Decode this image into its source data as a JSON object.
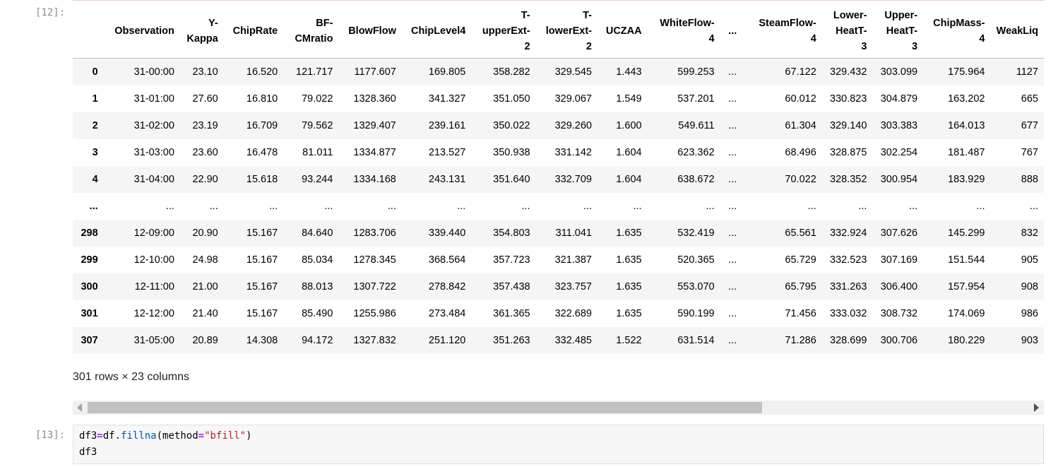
{
  "cells": {
    "out_prompt": "[12]:",
    "in_prompt": "[13]:"
  },
  "table": {
    "columns": [
      {
        "lines": [
          ""
        ]
      },
      {
        "lines": [
          "Observation"
        ]
      },
      {
        "lines": [
          "Y-",
          "Kappa"
        ]
      },
      {
        "lines": [
          "ChipRate"
        ]
      },
      {
        "lines": [
          "BF-",
          "CMratio"
        ]
      },
      {
        "lines": [
          "BlowFlow"
        ]
      },
      {
        "lines": [
          "ChipLevel4"
        ]
      },
      {
        "lines": [
          "T-",
          "upperExt-",
          "2"
        ]
      },
      {
        "lines": [
          "T-",
          "lowerExt-",
          "2"
        ]
      },
      {
        "lines": [
          "UCZAA"
        ]
      },
      {
        "lines": [
          "WhiteFlow-",
          "4"
        ]
      },
      {
        "lines": [
          "..."
        ]
      },
      {
        "lines": [
          "SteamFlow-",
          "4"
        ]
      },
      {
        "lines": [
          "Lower-",
          "HeatT-",
          "3"
        ]
      },
      {
        "lines": [
          "Upper-",
          "HeatT-",
          "3"
        ]
      },
      {
        "lines": [
          "ChipMass-",
          "4"
        ]
      },
      {
        "lines": [
          "WeakLiq"
        ]
      }
    ],
    "rows": [
      [
        "0",
        "31-00:00",
        "23.10",
        "16.520",
        "121.717",
        "1177.607",
        "169.805",
        "358.282",
        "329.545",
        "1.443",
        "599.253",
        "...",
        "67.122",
        "329.432",
        "303.099",
        "175.964",
        "1127"
      ],
      [
        "1",
        "31-01:00",
        "27.60",
        "16.810",
        "79.022",
        "1328.360",
        "341.327",
        "351.050",
        "329.067",
        "1.549",
        "537.201",
        "...",
        "60.012",
        "330.823",
        "304.879",
        "163.202",
        "665"
      ],
      [
        "2",
        "31-02:00",
        "23.19",
        "16.709",
        "79.562",
        "1329.407",
        "239.161",
        "350.022",
        "329.260",
        "1.600",
        "549.611",
        "...",
        "61.304",
        "329.140",
        "303.383",
        "164.013",
        "677"
      ],
      [
        "3",
        "31-03:00",
        "23.60",
        "16.478",
        "81.011",
        "1334.877",
        "213.527",
        "350.938",
        "331.142",
        "1.604",
        "623.362",
        "...",
        "68.496",
        "328.875",
        "302.254",
        "181.487",
        "767"
      ],
      [
        "4",
        "31-04:00",
        "22.90",
        "15.618",
        "93.244",
        "1334.168",
        "243.131",
        "351.640",
        "332.709",
        "1.604",
        "638.672",
        "...",
        "70.022",
        "328.352",
        "300.954",
        "183.929",
        "888"
      ],
      [
        "...",
        "...",
        "...",
        "...",
        "...",
        "...",
        "...",
        "...",
        "...",
        "...",
        "...",
        "...",
        "...",
        "...",
        "...",
        "...",
        "..."
      ],
      [
        "298",
        "12-09:00",
        "20.90",
        "15.167",
        "84.640",
        "1283.706",
        "339.440",
        "354.803",
        "311.041",
        "1.635",
        "532.419",
        "...",
        "65.561",
        "332.924",
        "307.626",
        "145.299",
        "832"
      ],
      [
        "299",
        "12-10:00",
        "24.98",
        "15.167",
        "85.034",
        "1278.345",
        "368.564",
        "357.723",
        "321.387",
        "1.635",
        "520.365",
        "...",
        "65.729",
        "332.523",
        "307.169",
        "151.544",
        "905"
      ],
      [
        "300",
        "12-11:00",
        "21.00",
        "15.167",
        "88.013",
        "1307.722",
        "278.842",
        "357.438",
        "323.757",
        "1.635",
        "553.070",
        "...",
        "65.795",
        "331.263",
        "306.400",
        "157.954",
        "908"
      ],
      [
        "301",
        "12-12:00",
        "21.40",
        "15.167",
        "85.490",
        "1255.986",
        "273.484",
        "361.365",
        "322.689",
        "1.635",
        "590.199",
        "...",
        "71.456",
        "333.032",
        "308.732",
        "174.069",
        "986"
      ],
      [
        "307",
        "31-05:00",
        "20.89",
        "14.308",
        "94.172",
        "1327.832",
        "251.120",
        "351.263",
        "332.485",
        "1.522",
        "631.514",
        "...",
        "71.286",
        "328.699",
        "300.706",
        "180.229",
        "903"
      ]
    ],
    "row_count_text": "301 rows × 23 columns"
  },
  "code": {
    "line1": {
      "var": "df3",
      "op": "=",
      "obj": "df",
      "dot": ".",
      "method": "fillna",
      "open": "(",
      "kw": "method",
      "eq": "=",
      "str": "\"bfill\"",
      "close": ")"
    },
    "line2": "df3"
  },
  "colors": {
    "prompt": "#8c8c8c",
    "stripe": "#f5f5f5",
    "code_bg": "#f7f7f7",
    "string": "#ba2121",
    "operator": "#aa22ff"
  }
}
